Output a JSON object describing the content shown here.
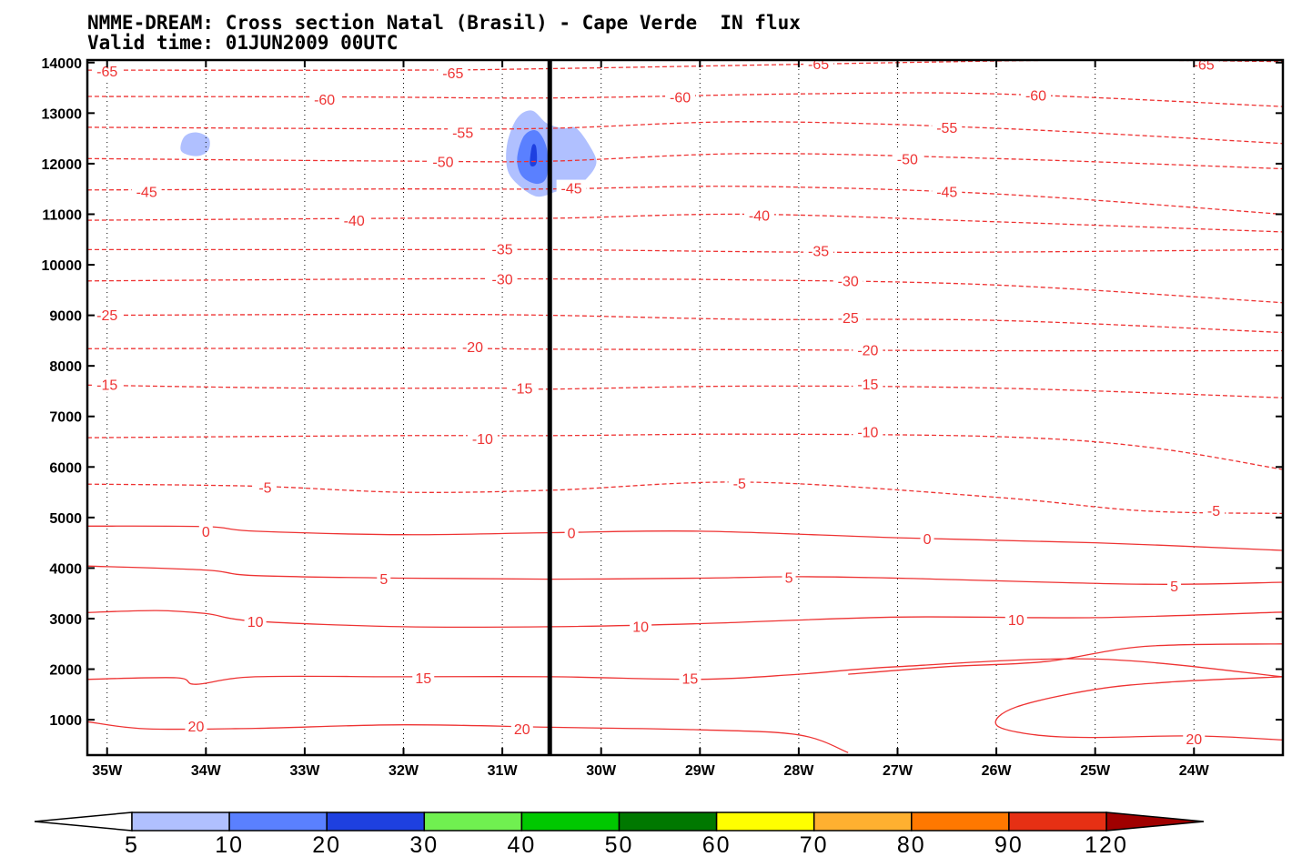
{
  "title_line1": "NMME-DREAM: Cross section Natal (Brasil) - Cape Verde  IN flux",
  "title_line2": "Valid time: 01JUN2009 00UTC",
  "colors": {
    "contour": "#ee3333",
    "separator": "#000000",
    "shade_5_10": "#b0c0ff",
    "shade_10_20": "#5a80ff",
    "shade_20_30": "#1e40e0"
  },
  "chart_data": {
    "type": "contour",
    "xlim": [
      -35.2,
      -23.1
    ],
    "ylim": [
      300,
      14050
    ],
    "x_ticks": [
      {
        "value": -35,
        "label": "35W"
      },
      {
        "value": -34,
        "label": "34W"
      },
      {
        "value": -33,
        "label": "33W"
      },
      {
        "value": -32,
        "label": "32W"
      },
      {
        "value": -31,
        "label": "31W"
      },
      {
        "value": -30,
        "label": "30W"
      },
      {
        "value": -29,
        "label": "29W"
      },
      {
        "value": -28,
        "label": "28W"
      },
      {
        "value": -27,
        "label": "27W"
      },
      {
        "value": -26,
        "label": "26W"
      },
      {
        "value": -25,
        "label": "25W"
      },
      {
        "value": -24,
        "label": "24W"
      }
    ],
    "y_ticks": [
      {
        "value": 1000,
        "label": "1000"
      },
      {
        "value": 2000,
        "label": "2000"
      },
      {
        "value": 3000,
        "label": "3000"
      },
      {
        "value": 4000,
        "label": "4000"
      },
      {
        "value": 5000,
        "label": "5000"
      },
      {
        "value": 6000,
        "label": "6000"
      },
      {
        "value": 7000,
        "label": "7000"
      },
      {
        "value": 8000,
        "label": "8000"
      },
      {
        "value": 9000,
        "label": "9000"
      },
      {
        "value": 10000,
        "label": "10000"
      },
      {
        "value": 11000,
        "label": "11000"
      },
      {
        "value": 12000,
        "label": "12000"
      },
      {
        "value": 13000,
        "label": "13000"
      },
      {
        "value": 14000,
        "label": "14000"
      }
    ],
    "separator_x": -30.52,
    "contours": [
      {
        "level": "-65",
        "dashed": true,
        "points": [
          [
            -35.2,
            13850
          ],
          [
            -32,
            13850
          ],
          [
            -30.5,
            13880
          ],
          [
            -27,
            14000
          ],
          [
            -25,
            14050
          ],
          [
            -23.1,
            14020
          ]
        ],
        "labels": [
          [
            -35.0,
            13830
          ],
          [
            -31.5,
            13800
          ],
          [
            -27.8,
            13980
          ],
          [
            -23.9,
            13970
          ]
        ]
      },
      {
        "level": "-60",
        "dashed": true,
        "points": [
          [
            -35.2,
            13330
          ],
          [
            -32.5,
            13320
          ],
          [
            -30.5,
            13300
          ],
          [
            -28,
            13380
          ],
          [
            -26,
            13380
          ],
          [
            -23.1,
            13130
          ]
        ],
        "labels": [
          [
            -32.8,
            13280
          ],
          [
            -29.2,
            13320
          ],
          [
            -25.6,
            13360
          ]
        ]
      },
      {
        "level": "-55",
        "dashed": true,
        "points": [
          [
            -35.2,
            12720
          ],
          [
            -32,
            12690
          ],
          [
            -30.5,
            12700
          ],
          [
            -28.5,
            12830
          ],
          [
            -26,
            12700
          ],
          [
            -23.1,
            12400
          ]
        ],
        "labels": [
          [
            -31.4,
            12620
          ],
          [
            -26.5,
            12720
          ]
        ]
      },
      {
        "level": "-50",
        "dashed": true,
        "points": [
          [
            -35.2,
            12100
          ],
          [
            -32,
            12050
          ],
          [
            -30.5,
            12050
          ],
          [
            -28.5,
            12200
          ],
          [
            -26,
            12100
          ],
          [
            -23.1,
            11900
          ]
        ],
        "labels": [
          [
            -31.6,
            12040
          ],
          [
            -26.9,
            12100
          ]
        ]
      },
      {
        "level": "-45",
        "dashed": true,
        "points": [
          [
            -35.2,
            11480
          ],
          [
            -32,
            11500
          ],
          [
            -30.5,
            11500
          ],
          [
            -28.5,
            11550
          ],
          [
            -26,
            11400
          ],
          [
            -23.1,
            11000
          ]
        ],
        "labels": [
          [
            -34.6,
            11450
          ],
          [
            -30.3,
            11520
          ],
          [
            -26.5,
            11450
          ]
        ]
      },
      {
        "level": "-40",
        "dashed": true,
        "points": [
          [
            -35.2,
            10880
          ],
          [
            -32,
            10920
          ],
          [
            -30.5,
            10920
          ],
          [
            -28.5,
            11000
          ],
          [
            -26,
            10850
          ],
          [
            -23.1,
            10650
          ]
        ],
        "labels": [
          [
            -32.5,
            10880
          ],
          [
            -28.4,
            10980
          ]
        ]
      },
      {
        "level": "-35",
        "dashed": true,
        "points": [
          [
            -35.2,
            10300
          ],
          [
            -32,
            10300
          ],
          [
            -30.5,
            10300
          ],
          [
            -28,
            10250
          ],
          [
            -26,
            10250
          ],
          [
            -23.1,
            10300
          ]
        ],
        "labels": [
          [
            -31.0,
            10320
          ],
          [
            -27.8,
            10280
          ]
        ]
      },
      {
        "level": "-30",
        "dashed": true,
        "points": [
          [
            -35.2,
            9680
          ],
          [
            -32,
            9720
          ],
          [
            -30.5,
            9720
          ],
          [
            -28.5,
            9700
          ],
          [
            -26,
            9600
          ],
          [
            -23.1,
            9250
          ]
        ],
        "labels": [
          [
            -31.0,
            9720
          ],
          [
            -27.5,
            9690
          ]
        ]
      },
      {
        "level": "-25",
        "dashed": true,
        "points": [
          [
            -35.2,
            9000
          ],
          [
            -32,
            9020
          ],
          [
            -30.5,
            9000
          ],
          [
            -28.5,
            8920
          ],
          [
            -26,
            8900
          ],
          [
            -23.1,
            8660
          ]
        ],
        "labels": [
          [
            -35.0,
            9010
          ],
          [
            -27.5,
            8960
          ]
        ]
      },
      {
        "level": "-20",
        "dashed": true,
        "points": [
          [
            -35.2,
            8340
          ],
          [
            -32,
            8350
          ],
          [
            -30.5,
            8330
          ],
          [
            -28.5,
            8320
          ],
          [
            -26,
            8300
          ],
          [
            -23.1,
            8300
          ]
        ],
        "labels": [
          [
            -31.3,
            8380
          ],
          [
            -27.3,
            8320
          ]
        ]
      },
      {
        "level": "-15",
        "dashed": true,
        "points": [
          [
            -35.2,
            7620
          ],
          [
            -33,
            7560
          ],
          [
            -31,
            7560
          ],
          [
            -30.5,
            7540
          ],
          [
            -28.5,
            7600
          ],
          [
            -26,
            7560
          ],
          [
            -23.1,
            7370
          ]
        ],
        "labels": [
          [
            -35.0,
            7630
          ],
          [
            -30.8,
            7560
          ],
          [
            -27.3,
            7640
          ]
        ]
      },
      {
        "level": "-10",
        "dashed": true,
        "points": [
          [
            -35.2,
            6580
          ],
          [
            -32,
            6620
          ],
          [
            -30.5,
            6620
          ],
          [
            -28.5,
            6650
          ],
          [
            -26,
            6600
          ],
          [
            -24.5,
            6400
          ],
          [
            -23.1,
            5950
          ]
        ],
        "labels": [
          [
            -31.2,
            6560
          ],
          [
            -27.3,
            6700
          ]
        ]
      },
      {
        "level": "-5",
        "dashed": true,
        "points": [
          [
            -35.2,
            5660
          ],
          [
            -33.5,
            5620
          ],
          [
            -32,
            5500
          ],
          [
            -30.5,
            5540
          ],
          [
            -28.5,
            5700
          ],
          [
            -26,
            5400
          ],
          [
            -24.5,
            5130
          ],
          [
            -23.1,
            5080
          ]
        ],
        "labels": [
          [
            -33.4,
            5600
          ],
          [
            -28.6,
            5680
          ],
          [
            -23.8,
            5140
          ]
        ]
      },
      {
        "level": "0",
        "dashed": false,
        "points": [
          [
            -35.2,
            4830
          ],
          [
            -34,
            4820
          ],
          [
            -33.5,
            4730
          ],
          [
            -32,
            4660
          ],
          [
            -30.5,
            4700
          ],
          [
            -29,
            4730
          ],
          [
            -27,
            4600
          ],
          [
            -25,
            4500
          ],
          [
            -23.1,
            4350
          ]
        ],
        "labels": [
          [
            -34.0,
            4730
          ],
          [
            -30.3,
            4700
          ],
          [
            -26.7,
            4580
          ]
        ]
      },
      {
        "level": "5",
        "dashed": false,
        "points": [
          [
            -35.2,
            4040
          ],
          [
            -34,
            3960
          ],
          [
            -33.5,
            3850
          ],
          [
            -32,
            3800
          ],
          [
            -30.5,
            3780
          ],
          [
            -29,
            3800
          ],
          [
            -28,
            3830
          ],
          [
            -27,
            3800
          ],
          [
            -24.5,
            3680
          ],
          [
            -23.1,
            3720
          ]
        ],
        "labels": [
          [
            -32.2,
            3790
          ],
          [
            -28.1,
            3820
          ],
          [
            -24.2,
            3650
          ]
        ]
      },
      {
        "level": "10",
        "dashed": false,
        "points": [
          [
            -35.2,
            3120
          ],
          [
            -34.5,
            3160
          ],
          [
            -34,
            3100
          ],
          [
            -33.5,
            2950
          ],
          [
            -32,
            2840
          ],
          [
            -30.5,
            2840
          ],
          [
            -29,
            2900
          ],
          [
            -27,
            3030
          ],
          [
            -25,
            3020
          ],
          [
            -23.1,
            3130
          ]
        ],
        "labels": [
          [
            -33.5,
            2950
          ],
          [
            -29.6,
            2850
          ],
          [
            -25.8,
            2980
          ]
        ]
      },
      {
        "level": "15",
        "dashed": false,
        "points": [
          [
            -35.2,
            1800
          ],
          [
            -34.3,
            1830
          ],
          [
            -34.1,
            1700
          ],
          [
            -33.5,
            1850
          ],
          [
            -32,
            1850
          ],
          [
            -30.5,
            1850
          ],
          [
            -29,
            1800
          ],
          [
            -28,
            1900
          ],
          [
            -27,
            2050
          ],
          [
            -25,
            2200
          ],
          [
            -23.1,
            1850
          ]
        ],
        "labels": [
          [
            -31.8,
            1830
          ],
          [
            -29.1,
            1820
          ]
        ]
      },
      {
        "level": "20",
        "dashed": false,
        "points": [
          [
            -35.2,
            960
          ],
          [
            -34.6,
            820
          ],
          [
            -33.5,
            830
          ],
          [
            -32,
            900
          ],
          [
            -30.5,
            850
          ],
          [
            -29,
            800
          ],
          [
            -28,
            700
          ],
          [
            -27.5,
            350
          ]
        ],
        "labels": [
          [
            -34.1,
            880
          ],
          [
            -30.8,
            820
          ]
        ]
      },
      {
        "level": "20b",
        "dashed": false,
        "points": [
          [
            -23.1,
            2500
          ],
          [
            -24.5,
            2450
          ],
          [
            -25.5,
            2150
          ],
          [
            -26.5,
            2050
          ],
          [
            -27.5,
            1900
          ]
        ],
        "labels": []
      },
      {
        "level": "20c",
        "dashed": false,
        "points": [
          [
            -23.1,
            1850
          ],
          [
            -24.2,
            1750
          ],
          [
            -25,
            1600
          ],
          [
            -25.8,
            1250
          ],
          [
            -26.0,
            900
          ],
          [
            -25.6,
            700
          ],
          [
            -25,
            650
          ],
          [
            -24.0,
            680
          ],
          [
            -23.1,
            600
          ]
        ],
        "labels": [
          [
            -24.0,
            620
          ]
        ]
      }
    ],
    "shades": [
      {
        "range": "5-10",
        "color": "#b0c0ff",
        "shapes": [
          [
            [
              -34.25,
              12250
            ],
            [
              -34.1,
              12150
            ],
            [
              -33.98,
              12250
            ],
            [
              -33.97,
              12500
            ],
            [
              -34.1,
              12620
            ],
            [
              -34.22,
              12530
            ]
          ],
          [
            [
              -30.85,
              11600
            ],
            [
              -30.65,
              11350
            ],
            [
              -30.45,
              11450
            ],
            [
              -30.3,
              11500
            ],
            [
              -30.15,
              11700
            ],
            [
              -30.05,
              12000
            ],
            [
              -30.1,
              12300
            ],
            [
              -30.25,
              12700
            ],
            [
              -30.38,
              12700
            ],
            [
              -30.55,
              12800
            ],
            [
              -30.7,
              13050
            ],
            [
              -30.85,
              12900
            ],
            [
              -30.95,
              12400
            ],
            [
              -30.95,
              11900
            ]
          ]
        ]
      },
      {
        "range": "10-20",
        "color": "#5a80ff",
        "shapes": [
          [
            [
              -30.8,
              11750
            ],
            [
              -30.65,
              11600
            ],
            [
              -30.55,
              11750
            ],
            [
              -30.55,
              12300
            ],
            [
              -30.65,
              12650
            ],
            [
              -30.78,
              12550
            ],
            [
              -30.85,
              12100
            ]
          ]
        ]
      },
      {
        "range": "20-30",
        "color": "#1e40e0",
        "shapes": [
          [
            [
              -30.72,
              12000
            ],
            [
              -30.68,
              11950
            ],
            [
              -30.65,
              12050
            ],
            [
              -30.66,
              12350
            ],
            [
              -30.7,
              12350
            ]
          ]
        ]
      }
    ],
    "colorbar": {
      "labels": [
        "5",
        "10",
        "20",
        "30",
        "40",
        "50",
        "60",
        "70",
        "80",
        "90",
        "120"
      ],
      "colors": [
        "#b0c0ff",
        "#5a80ff",
        "#1e40e0",
        "#70f050",
        "#00c800",
        "#007800",
        "#ffff00",
        "#ffb030",
        "#ff7800",
        "#e63014"
      ],
      "under_color": "#ffffff",
      "over_color": "#a00000"
    }
  }
}
